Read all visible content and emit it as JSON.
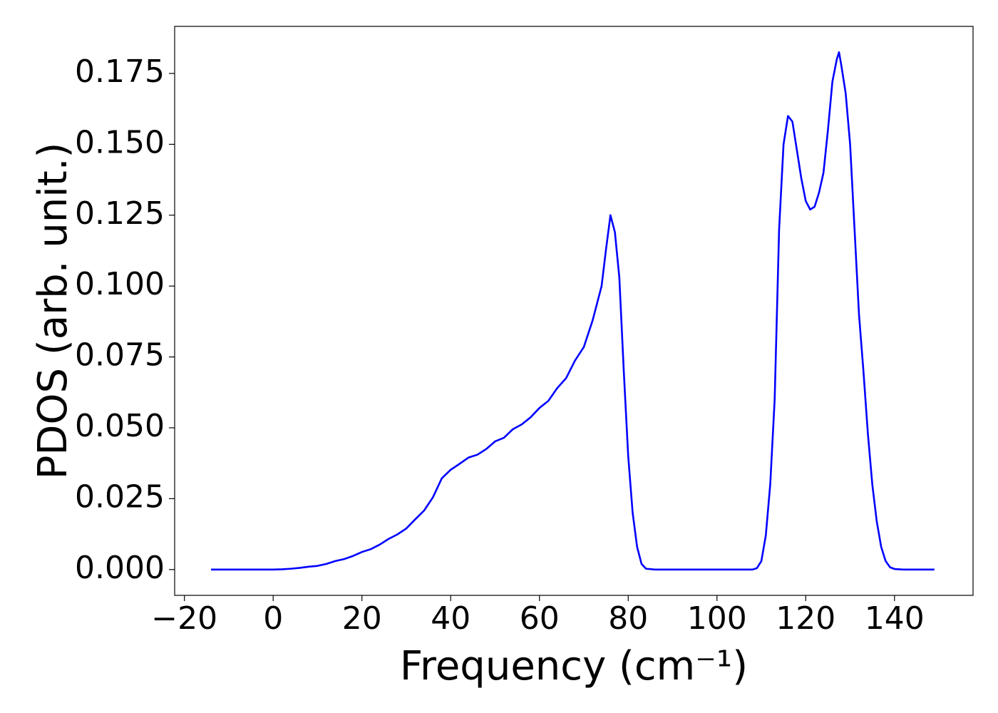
{
  "chart_data": {
    "type": "line",
    "xlabel": "Frequency (cm⁻¹)",
    "ylabel": "PDOS (arb. unit.)",
    "x": [
      -14,
      -10,
      -6,
      -2,
      0,
      2,
      4,
      6,
      8,
      10,
      12,
      14,
      16,
      18,
      20,
      22,
      24,
      26,
      28,
      30,
      32,
      34,
      36,
      38,
      40,
      42,
      44,
      46,
      48,
      50,
      52,
      54,
      56,
      58,
      60,
      62,
      64,
      66,
      68,
      70,
      72,
      74,
      75,
      76,
      77,
      78,
      79,
      80,
      81,
      82,
      83,
      84,
      86,
      90,
      100,
      108,
      109,
      110,
      111,
      112,
      113,
      114,
      115,
      116,
      117,
      118,
      119,
      120,
      121,
      122,
      123,
      124,
      125,
      126,
      127,
      127.5,
      128,
      129,
      130,
      131,
      132,
      133,
      134,
      135,
      136,
      137,
      138,
      139,
      140,
      142,
      149
    ],
    "series": [
      {
        "color": "#0000ff",
        "values": [
          0,
          0,
          0,
          0,
          0,
          0.0001,
          0.0003,
          0.0006,
          0.001,
          0.0013,
          0.002,
          0.003,
          0.0037,
          0.0048,
          0.0062,
          0.0072,
          0.0088,
          0.0108,
          0.0124,
          0.0145,
          0.0177,
          0.0208,
          0.0255,
          0.0322,
          0.0352,
          0.0373,
          0.0395,
          0.0405,
          0.0425,
          0.0452,
          0.0465,
          0.0495,
          0.0512,
          0.0537,
          0.057,
          0.0595,
          0.064,
          0.0675,
          0.0737,
          0.0785,
          0.088,
          0.1,
          0.113,
          0.125,
          0.119,
          0.103,
          0.07,
          0.04,
          0.02,
          0.008,
          0.002,
          0.0003,
          0,
          0,
          0,
          0,
          0.0005,
          0.003,
          0.012,
          0.03,
          0.06,
          0.12,
          0.15,
          0.16,
          0.158,
          0.148,
          0.138,
          0.13,
          0.127,
          0.128,
          0.133,
          0.14,
          0.155,
          0.172,
          0.18,
          0.1825,
          0.178,
          0.168,
          0.15,
          0.12,
          0.09,
          0.07,
          0.048,
          0.03,
          0.017,
          0.008,
          0.003,
          0.0008,
          0.0002,
          0,
          0
        ]
      }
    ],
    "xlim": [
      -22.2,
      157.7
    ],
    "ylim": [
      -0.0091,
      0.1916
    ],
    "xticks": [
      {
        "value": -20,
        "label": "−20"
      },
      0,
      20,
      40,
      60,
      80,
      100,
      120,
      140
    ],
    "yticks": [
      {
        "value": 0,
        "label": "0.000"
      },
      {
        "value": 0.025,
        "label": "0.025"
      },
      {
        "value": 0.05,
        "label": "0.050"
      },
      {
        "value": 0.075,
        "label": "0.075"
      },
      {
        "value": 0.1,
        "label": "0.100"
      },
      {
        "value": 0.125,
        "label": "0.125"
      },
      {
        "value": 0.15,
        "label": "0.150"
      },
      {
        "value": 0.175,
        "label": "0.175"
      }
    ],
    "grid": false
  }
}
